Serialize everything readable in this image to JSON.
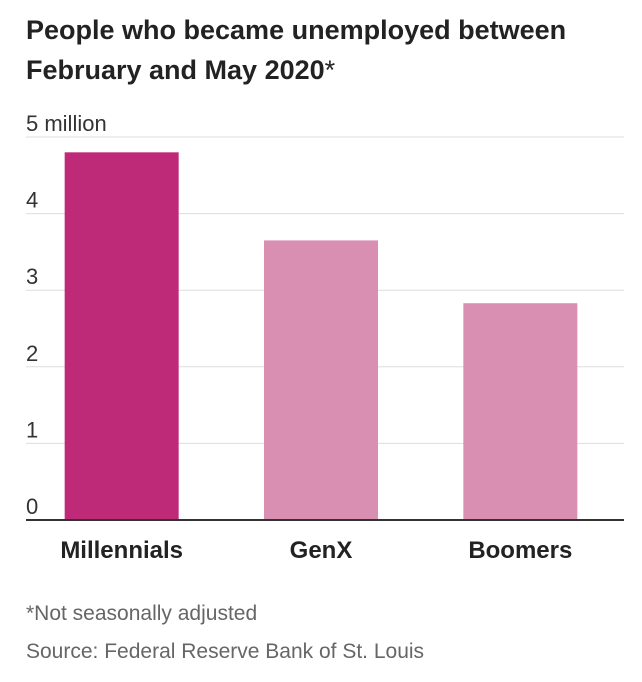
{
  "title": "People who became unemployed between February and May 2020",
  "title_marker": "*",
  "footnote": "*Not seasonally adjusted",
  "source": "Source: Federal Reserve Bank of St. Louis",
  "colors": {
    "highlight": "#bf2a78",
    "bar": "#d98fb2",
    "grid": "#dddddd",
    "axis": "#333333"
  },
  "chart_data": {
    "type": "bar",
    "categories": [
      "Millennials",
      "GenX",
      "Boomers"
    ],
    "values": [
      4.8,
      3.65,
      2.83
    ],
    "highlight_index": 0,
    "ylim": [
      0,
      5
    ],
    "yticks": [
      0,
      1,
      2,
      3,
      4,
      5
    ],
    "ytick_labels": [
      "0",
      "1",
      "2",
      "3",
      "4",
      "5 million"
    ],
    "xlabel": "",
    "ylabel": "",
    "grid": true
  }
}
